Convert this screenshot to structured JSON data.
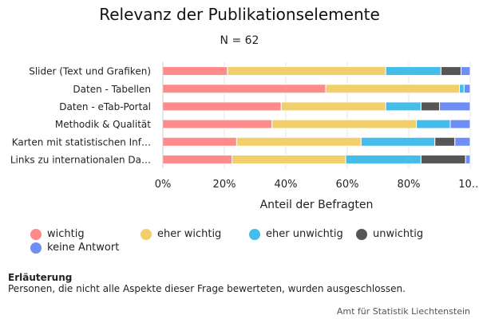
{
  "title": "Relevanz der Publikationselemente",
  "subtitle": "N = 62",
  "note": {
    "heading": "Erläuterung",
    "text": "Personen, die nicht alle Aspekte dieser Frage bewerteten, wurden ausgeschlossen."
  },
  "credits": "Amt für Statistik Liechtenstein",
  "chart_data": {
    "type": "bar",
    "orientation": "horizontal",
    "stacking": "percent",
    "title": "Relevanz der Publikationselemente",
    "subtitle": "N = 62",
    "xlabel": "Anteil der Befragten",
    "ylabel": "",
    "xlim": [
      0,
      100
    ],
    "x_ticks": [
      "0%",
      "20%",
      "40%",
      "60%",
      "80%",
      "10…"
    ],
    "categories": [
      "Slider (Text und Grafiken)",
      "Daten - Tabellen",
      "Daten - eTab-Portal",
      "Methodik & Qualität",
      "Karten mit statistischen Inf…",
      "Links zu internationalen Da…"
    ],
    "series": [
      {
        "name": "wichtig",
        "color": "#ff8a8a",
        "values": [
          21,
          53,
          38.5,
          35.5,
          24,
          22.5
        ]
      },
      {
        "name": "eher wichtig",
        "color": "#f2cf6b",
        "values": [
          51.5,
          43.5,
          34,
          47,
          40.5,
          37
        ]
      },
      {
        "name": "eher unwichtig",
        "color": "#44bdeb",
        "values": [
          18,
          1.5,
          11.5,
          11,
          24,
          24.5
        ]
      },
      {
        "name": "unwichtig",
        "color": "#555555",
        "values": [
          6.5,
          0,
          6,
          0,
          6.5,
          14.5
        ]
      },
      {
        "name": "keine Antwort",
        "color": "#6e8ef5",
        "values": [
          3,
          2,
          10,
          6.5,
          5,
          1.5
        ]
      }
    ],
    "grid": true,
    "legend_position": "bottom"
  }
}
